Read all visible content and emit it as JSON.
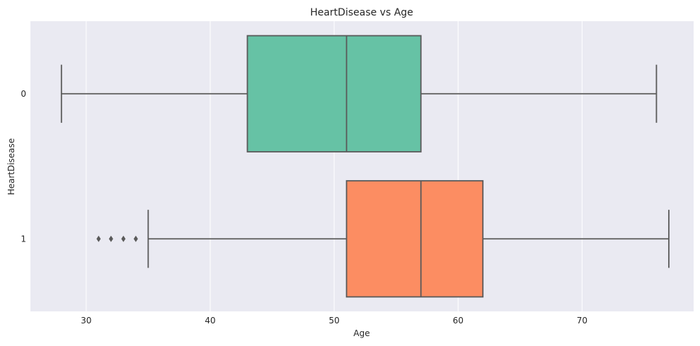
{
  "chart_data": {
    "type": "box",
    "orientation": "horizontal",
    "title": "HeartDisease vs Age",
    "xlabel": "Age",
    "ylabel": "HeartDisease",
    "xlim": [
      25.5,
      79
    ],
    "xticks": [
      30,
      40,
      50,
      60,
      70
    ],
    "grid": true,
    "categories": [
      "0",
      "1"
    ],
    "series": [
      {
        "category": "0",
        "whisker_low": 28,
        "q1": 43,
        "median": 51,
        "q3": 57,
        "whisker_high": 76,
        "outliers": [],
        "color": "#66c2a5"
      },
      {
        "category": "1",
        "whisker_low": 35,
        "q1": 51,
        "median": 57,
        "q3": 62,
        "whisker_high": 77,
        "outliers": [
          31,
          32,
          33,
          34
        ],
        "color": "#fc8d62"
      }
    ],
    "colors": {
      "plot_bg": "#eaeaf2",
      "grid": "#ffffff",
      "line": "#5a5a5a"
    }
  }
}
